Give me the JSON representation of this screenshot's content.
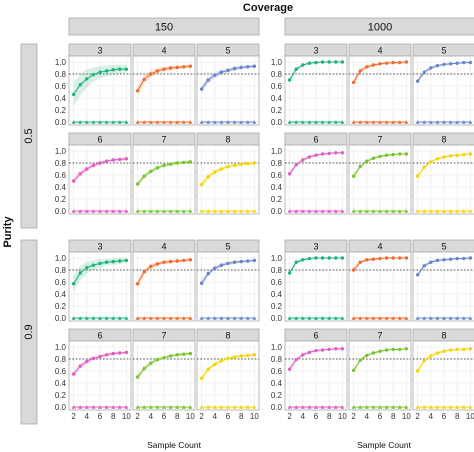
{
  "chart_data": {
    "type": "line",
    "title": "Coverage",
    "xlabel": "Sample Count",
    "ylabel": "Purity",
    "x": [
      2,
      3,
      4,
      5,
      6,
      7,
      8,
      9,
      10
    ],
    "x_ticks": [
      "2",
      "4",
      "6",
      "8",
      "10"
    ],
    "y_ticks": [
      "0.0",
      "0.2",
      "0.4",
      "0.6",
      "0.8",
      "1.0"
    ],
    "xlim": [
      1.3,
      10.7
    ],
    "ylim": [
      -0.05,
      1.1
    ],
    "reference_line": 0.8,
    "coverage_levels": [
      "150",
      "1000"
    ],
    "purity_levels": [
      "0.5",
      "0.9"
    ],
    "panels": [
      "3",
      "4",
      "5",
      "6",
      "7",
      "8"
    ],
    "colors": {
      "3": "#1fb37a",
      "4": "#f26b2e",
      "5": "#6b86c7",
      "6": "#e25ec3",
      "7": "#7ac431",
      "8": "#f2d60b"
    },
    "series": {
      "150|0.5": {
        "3": {
          "upper": [
            0.46,
            0.62,
            0.72,
            0.79,
            0.83,
            0.85,
            0.87,
            0.88,
            0.88
          ],
          "lower": [
            0.0,
            0.0,
            0.0,
            0.0,
            0.0,
            0.0,
            0.0,
            0.0,
            0.0
          ],
          "band": [
            0.2,
            0.18,
            0.15,
            0.12,
            0.1,
            0.09,
            0.08,
            0.07,
            0.06
          ]
        },
        "4": {
          "upper": [
            0.52,
            0.71,
            0.8,
            0.85,
            0.88,
            0.9,
            0.91,
            0.92,
            0.93
          ],
          "lower": [
            0.0,
            0.0,
            0.0,
            0.0,
            0.0,
            0.0,
            0.0,
            0.0,
            0.0
          ],
          "band": [
            0.08,
            0.07,
            0.06,
            0.05,
            0.04,
            0.04,
            0.03,
            0.03,
            0.03
          ]
        },
        "5": {
          "upper": [
            0.55,
            0.7,
            0.78,
            0.83,
            0.86,
            0.89,
            0.91,
            0.92,
            0.93
          ],
          "lower": [
            0.0,
            0.0,
            0.0,
            0.0,
            0.0,
            0.0,
            0.0,
            0.0,
            0.0
          ],
          "band": [
            0.07,
            0.06,
            0.05,
            0.05,
            0.04,
            0.04,
            0.03,
            0.03,
            0.03
          ]
        },
        "6": {
          "upper": [
            0.5,
            0.62,
            0.7,
            0.76,
            0.8,
            0.83,
            0.85,
            0.86,
            0.87
          ],
          "lower": [
            0.0,
            0.0,
            0.0,
            0.0,
            0.0,
            0.0,
            0.0,
            0.0,
            0.0
          ],
          "band": [
            0.06,
            0.05,
            0.05,
            0.04,
            0.04,
            0.03,
            0.03,
            0.03,
            0.03
          ]
        },
        "7": {
          "upper": [
            0.45,
            0.58,
            0.66,
            0.72,
            0.76,
            0.78,
            0.8,
            0.81,
            0.82
          ],
          "lower": [
            0.0,
            0.0,
            0.0,
            0.0,
            0.0,
            0.0,
            0.0,
            0.0,
            0.0
          ],
          "band": [
            0.05,
            0.05,
            0.04,
            0.04,
            0.03,
            0.03,
            0.03,
            0.03,
            0.03
          ]
        },
        "8": {
          "upper": [
            0.44,
            0.57,
            0.65,
            0.7,
            0.74,
            0.76,
            0.78,
            0.79,
            0.8
          ],
          "lower": [
            0.0,
            0.0,
            0.0,
            0.0,
            0.0,
            0.0,
            0.0,
            0.0,
            0.0
          ],
          "band": [
            0.05,
            0.05,
            0.04,
            0.04,
            0.03,
            0.03,
            0.03,
            0.03,
            0.03
          ]
        }
      },
      "1000|0.5": {
        "3": {
          "upper": [
            0.7,
            0.88,
            0.95,
            0.98,
            0.99,
            1.0,
            1.0,
            1.0,
            1.0
          ],
          "lower": [
            0.0,
            0.0,
            0.0,
            0.0,
            0.0,
            0.0,
            0.0,
            0.0,
            0.0
          ],
          "band": [
            0.04,
            0.03,
            0.02,
            0.01,
            0.01,
            0.01,
            0.0,
            0.0,
            0.0
          ]
        },
        "4": {
          "upper": [
            0.66,
            0.85,
            0.92,
            0.95,
            0.97,
            0.98,
            0.99,
            0.99,
            1.0
          ],
          "lower": [
            0.0,
            0.0,
            0.0,
            0.0,
            0.0,
            0.0,
            0.0,
            0.0,
            0.0
          ],
          "band": [
            0.05,
            0.04,
            0.03,
            0.02,
            0.02,
            0.01,
            0.01,
            0.01,
            0.01
          ]
        },
        "5": {
          "upper": [
            0.68,
            0.83,
            0.9,
            0.94,
            0.96,
            0.97,
            0.98,
            0.99,
            0.99
          ],
          "lower": [
            0.0,
            0.0,
            0.0,
            0.0,
            0.0,
            0.0,
            0.0,
            0.0,
            0.0
          ],
          "band": [
            0.04,
            0.03,
            0.03,
            0.02,
            0.02,
            0.01,
            0.01,
            0.01,
            0.01
          ]
        },
        "6": {
          "upper": [
            0.62,
            0.77,
            0.85,
            0.9,
            0.93,
            0.95,
            0.96,
            0.97,
            0.97
          ],
          "lower": [
            0.0,
            0.0,
            0.0,
            0.0,
            0.0,
            0.0,
            0.0,
            0.0,
            0.0
          ],
          "band": [
            0.04,
            0.03,
            0.03,
            0.02,
            0.02,
            0.02,
            0.01,
            0.01,
            0.01
          ]
        },
        "7": {
          "upper": [
            0.58,
            0.74,
            0.83,
            0.88,
            0.91,
            0.93,
            0.94,
            0.95,
            0.95
          ],
          "lower": [
            0.0,
            0.0,
            0.0,
            0.0,
            0.0,
            0.0,
            0.0,
            0.0,
            0.0
          ],
          "band": [
            0.04,
            0.03,
            0.03,
            0.02,
            0.02,
            0.02,
            0.01,
            0.01,
            0.01
          ]
        },
        "8": {
          "upper": [
            0.58,
            0.73,
            0.82,
            0.87,
            0.9,
            0.92,
            0.93,
            0.94,
            0.95
          ],
          "lower": [
            0.0,
            0.0,
            0.0,
            0.0,
            0.0,
            0.0,
            0.0,
            0.0,
            0.0
          ],
          "band": [
            0.04,
            0.03,
            0.03,
            0.02,
            0.02,
            0.02,
            0.01,
            0.01,
            0.01
          ]
        }
      },
      "150|0.9": {
        "3": {
          "upper": [
            0.57,
            0.75,
            0.84,
            0.88,
            0.91,
            0.93,
            0.94,
            0.95,
            0.96
          ],
          "lower": [
            0.0,
            0.0,
            0.0,
            0.0,
            0.0,
            0.0,
            0.0,
            0.0,
            0.0
          ],
          "band": [
            0.14,
            0.12,
            0.1,
            0.08,
            0.07,
            0.06,
            0.05,
            0.05,
            0.04
          ]
        },
        "4": {
          "upper": [
            0.57,
            0.77,
            0.86,
            0.9,
            0.93,
            0.94,
            0.95,
            0.96,
            0.97
          ],
          "lower": [
            0.0,
            0.0,
            0.0,
            0.0,
            0.0,
            0.0,
            0.0,
            0.0,
            0.0
          ],
          "band": [
            0.06,
            0.05,
            0.04,
            0.04,
            0.03,
            0.03,
            0.02,
            0.02,
            0.02
          ]
        },
        "5": {
          "upper": [
            0.58,
            0.74,
            0.83,
            0.88,
            0.91,
            0.93,
            0.94,
            0.95,
            0.96
          ],
          "lower": [
            0.0,
            0.0,
            0.0,
            0.0,
            0.0,
            0.0,
            0.0,
            0.0,
            0.0
          ],
          "band": [
            0.06,
            0.05,
            0.04,
            0.04,
            0.03,
            0.03,
            0.02,
            0.02,
            0.02
          ]
        },
        "6": {
          "upper": [
            0.55,
            0.68,
            0.76,
            0.81,
            0.84,
            0.87,
            0.89,
            0.9,
            0.91
          ],
          "lower": [
            0.0,
            0.0,
            0.0,
            0.0,
            0.0,
            0.0,
            0.0,
            0.0,
            0.0
          ],
          "band": [
            0.05,
            0.05,
            0.04,
            0.04,
            0.03,
            0.03,
            0.03,
            0.02,
            0.02
          ]
        },
        "7": {
          "upper": [
            0.5,
            0.64,
            0.73,
            0.79,
            0.82,
            0.85,
            0.87,
            0.88,
            0.89
          ],
          "lower": [
            0.0,
            0.0,
            0.0,
            0.0,
            0.0,
            0.0,
            0.0,
            0.0,
            0.0
          ],
          "band": [
            0.05,
            0.05,
            0.04,
            0.04,
            0.03,
            0.03,
            0.03,
            0.02,
            0.02
          ]
        },
        "8": {
          "upper": [
            0.48,
            0.63,
            0.71,
            0.77,
            0.81,
            0.83,
            0.85,
            0.86,
            0.87
          ],
          "lower": [
            0.0,
            0.0,
            0.0,
            0.0,
            0.0,
            0.0,
            0.0,
            0.0,
            0.0
          ],
          "band": [
            0.05,
            0.05,
            0.04,
            0.04,
            0.03,
            0.03,
            0.03,
            0.02,
            0.02
          ]
        }
      },
      "1000|0.9": {
        "3": {
          "upper": [
            0.75,
            0.93,
            0.97,
            0.99,
            1.0,
            1.0,
            1.0,
            1.0,
            1.0
          ],
          "lower": [
            0.0,
            0.0,
            0.0,
            0.0,
            0.0,
            0.0,
            0.0,
            0.0,
            0.0
          ],
          "band": [
            0.04,
            0.03,
            0.02,
            0.01,
            0.01,
            0.0,
            0.0,
            0.0,
            0.0
          ]
        },
        "4": {
          "upper": [
            0.8,
            0.93,
            0.97,
            0.98,
            0.99,
            1.0,
            1.0,
            1.0,
            1.0
          ],
          "lower": [
            0.0,
            0.0,
            0.0,
            0.0,
            0.0,
            0.0,
            0.0,
            0.0,
            0.0
          ],
          "band": [
            0.04,
            0.03,
            0.02,
            0.02,
            0.01,
            0.01,
            0.01,
            0.0,
            0.0
          ]
        },
        "5": {
          "upper": [
            0.72,
            0.87,
            0.93,
            0.96,
            0.97,
            0.98,
            0.99,
            0.99,
            1.0
          ],
          "lower": [
            0.0,
            0.0,
            0.0,
            0.0,
            0.0,
            0.0,
            0.0,
            0.0,
            0.0
          ],
          "band": [
            0.04,
            0.03,
            0.03,
            0.02,
            0.02,
            0.01,
            0.01,
            0.01,
            0.01
          ]
        },
        "6": {
          "upper": [
            0.63,
            0.79,
            0.87,
            0.91,
            0.94,
            0.95,
            0.96,
            0.97,
            0.97
          ],
          "lower": [
            0.0,
            0.0,
            0.0,
            0.0,
            0.0,
            0.0,
            0.0,
            0.0,
            0.0
          ],
          "band": [
            0.04,
            0.03,
            0.03,
            0.02,
            0.02,
            0.02,
            0.01,
            0.01,
            0.01
          ]
        },
        "7": {
          "upper": [
            0.61,
            0.78,
            0.86,
            0.9,
            0.93,
            0.95,
            0.96,
            0.96,
            0.97
          ],
          "lower": [
            0.0,
            0.0,
            0.0,
            0.0,
            0.0,
            0.0,
            0.0,
            0.0,
            0.0
          ],
          "band": [
            0.04,
            0.03,
            0.03,
            0.02,
            0.02,
            0.02,
            0.01,
            0.01,
            0.01
          ]
        },
        "8": {
          "upper": [
            0.6,
            0.77,
            0.85,
            0.9,
            0.93,
            0.95,
            0.96,
            0.96,
            0.97
          ],
          "lower": [
            0.0,
            0.0,
            0.0,
            0.0,
            0.0,
            0.0,
            0.0,
            0.0,
            0.0
          ],
          "band": [
            0.04,
            0.03,
            0.03,
            0.02,
            0.02,
            0.02,
            0.01,
            0.01,
            0.01
          ]
        }
      }
    }
  }
}
